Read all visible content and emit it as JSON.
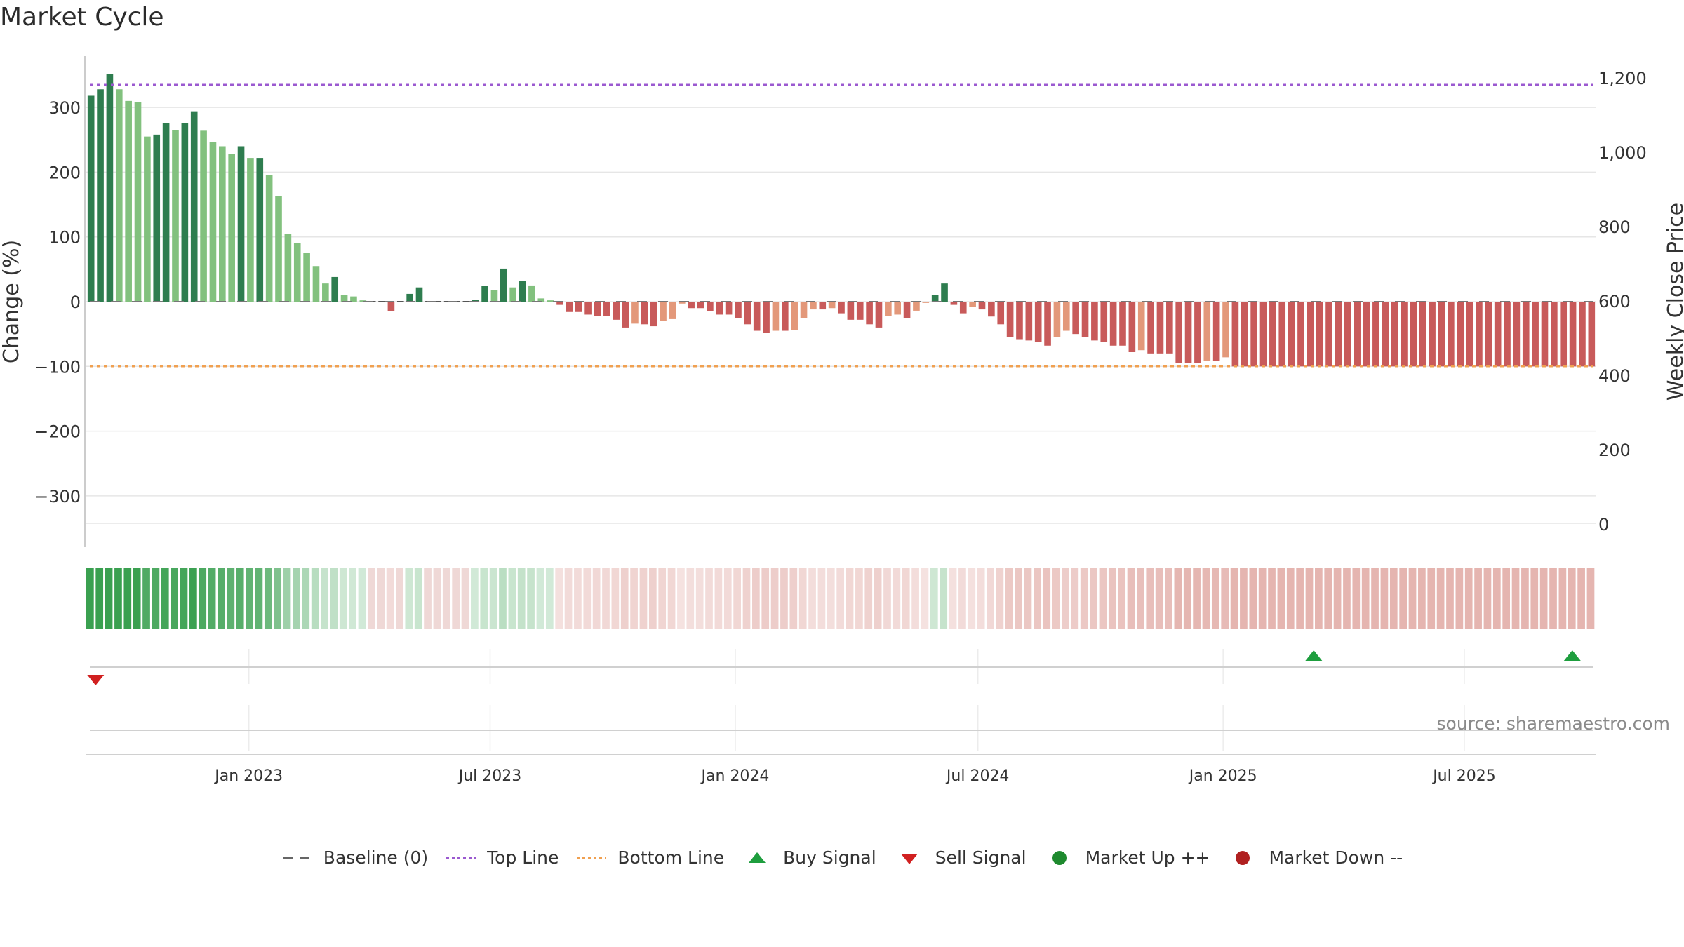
{
  "title": "Market Cycle",
  "source": "source: sharemaestro.com",
  "colors": {
    "up_dark": "#2e7d4f",
    "up_light": "#82c17e",
    "down_dark": "#c85a5a",
    "down_light": "#e3987a",
    "top_line": "#9b59d0",
    "bottom_line": "#f0a050",
    "buy": "#1e9e3e",
    "sell": "#d12020",
    "market_up": "#1e8a2e",
    "market_down": "#b02020"
  },
  "legend": [
    {
      "label": "Baseline (0)",
      "icon": "dash-line",
      "color": "#666666"
    },
    {
      "label": "Top Line",
      "icon": "dotted-line",
      "color": "#9b59d0"
    },
    {
      "label": "Bottom Line",
      "icon": "dotted-line",
      "color": "#f0a050"
    },
    {
      "label": "Buy Signal",
      "icon": "triangle-up",
      "color": "#1e9e3e"
    },
    {
      "label": "Sell Signal",
      "icon": "triangle-down",
      "color": "#d12020"
    },
    {
      "label": "Market Up ++",
      "icon": "circle",
      "color": "#1e8a2e"
    },
    {
      "label": "Market Down --",
      "icon": "circle",
      "color": "#b02020"
    }
  ],
  "chart_data": {
    "type": "bar",
    "ylabel_left": "Change (%)",
    "ylabel_right": "Weekly Close Price",
    "ylim_left": [
      -380,
      380
    ],
    "yticks_left": [
      300,
      200,
      100,
      0,
      -100,
      -200,
      -300
    ],
    "yticks_left_labels": [
      "300",
      "200",
      "100",
      "0",
      "−100",
      "−200",
      "−300"
    ],
    "yticks_right": [
      1200,
      1000,
      800,
      600,
      400,
      200,
      0
    ],
    "yticks_right_labels": [
      "1,200",
      "1,000",
      "800",
      "600",
      "400",
      "200",
      "0"
    ],
    "xticks": [
      "2023-01-01",
      "2023-07-01",
      "2024-01-01",
      "2024-07-01",
      "2025-01-01",
      "2025-07-01"
    ],
    "xtick_labels": [
      "Jan 2023",
      "Jul 2023",
      "Jan 2024",
      "Jul 2024",
      "Jan 2025",
      "Jul 2025"
    ],
    "x_start": "2022-09-01",
    "x_end": "2025-10-08",
    "top_line": 335,
    "bottom_line": -100,
    "baseline": 0,
    "grid": true,
    "legend_position": "bottom",
    "series": [
      {
        "weeks": [
          "2022-09-02",
          "2025-09-26"
        ],
        "values": [
          318,
          328,
          352,
          328,
          310,
          308,
          255,
          258,
          276,
          265,
          276,
          294,
          264,
          247,
          240,
          228,
          240,
          222,
          222,
          196,
          163,
          104,
          90,
          75,
          55,
          28,
          38,
          10,
          8,
          2,
          0,
          0,
          -15,
          0,
          12,
          22,
          0,
          0,
          0,
          0,
          0,
          3,
          24,
          18,
          51,
          22,
          32,
          25,
          5,
          2,
          -5,
          -16,
          -16,
          -20,
          -22,
          -22,
          -28,
          -40,
          -34,
          -35,
          -38,
          -30,
          -27,
          -3,
          -10,
          -10,
          -15,
          -20,
          -20,
          -25,
          -35,
          -45,
          -48,
          -45,
          -45,
          -44,
          -25,
          -12,
          -12,
          -10,
          -18,
          -28,
          -28,
          -35,
          -40,
          -22,
          -20,
          -25,
          -14,
          -2,
          10,
          28,
          -5,
          -18,
          -8,
          -12,
          -23,
          -35,
          -55,
          -58,
          -60,
          -62,
          -68,
          -55,
          -45,
          -50,
          -55,
          -60,
          -62,
          -68,
          -68,
          -78,
          -75,
          -80,
          -80,
          -80,
          -95,
          -95,
          -95,
          -92,
          -92,
          -86,
          -100,
          -100,
          -100,
          -100,
          -100,
          -100,
          -100,
          -100,
          -100,
          -100,
          -100,
          -100,
          -100,
          -100,
          -100,
          -100,
          -100,
          -100,
          -100,
          -100,
          -100,
          -100,
          -100,
          -100,
          -100,
          -100,
          -100,
          -100,
          -100,
          -100,
          -100,
          -100,
          -100,
          -100,
          -100,
          -100,
          -100,
          -100,
          -100
        ]
      }
    ],
    "buy_signals": [
      "2025-03-10",
      "2025-09-20"
    ],
    "sell_signals": [
      "2022-09-08"
    ]
  }
}
